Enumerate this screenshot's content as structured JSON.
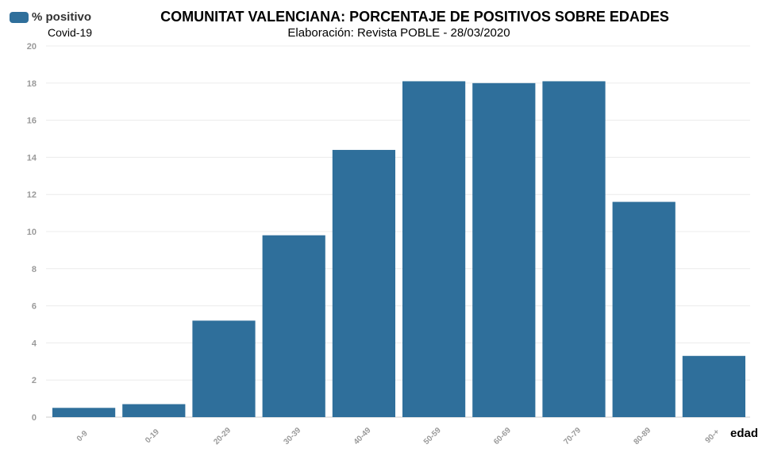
{
  "legend": {
    "label": "% positivo",
    "sublabel": "Covid-19",
    "swatch_color": "#2f6f9b"
  },
  "title": "COMUNITAT VALENCIANA: PORCENTAJE DE POSITIVOS SOBRE EDADES",
  "subtitle": "Elaboración: Revista POBLE - 28/03/2020",
  "chart_data": {
    "type": "bar",
    "title": "COMUNITAT VALENCIANA: PORCENTAJE DE POSITIVOS SOBRE EDADES",
    "subtitle": "Elaboración: Revista POBLE - 28/03/2020",
    "xlabel": "edad",
    "ylabel": "",
    "categories": [
      "0-9",
      "0-19",
      "20-29",
      "30-39",
      "40-49",
      "50-59",
      "60-69",
      "70-79",
      "80-89",
      "90-+"
    ],
    "series": [
      {
        "name": "% positivo",
        "values": [
          0.5,
          0.7,
          5.2,
          9.8,
          14.4,
          18.1,
          18.0,
          18.1,
          11.6,
          3.3
        ]
      }
    ],
    "ylim": [
      0,
      20
    ],
    "yticks": [
      0,
      2,
      4,
      6,
      8,
      10,
      12,
      14,
      16,
      18,
      20
    ],
    "grid": true,
    "legend_position": "top-left",
    "bar_color": "#2f6f9b"
  }
}
